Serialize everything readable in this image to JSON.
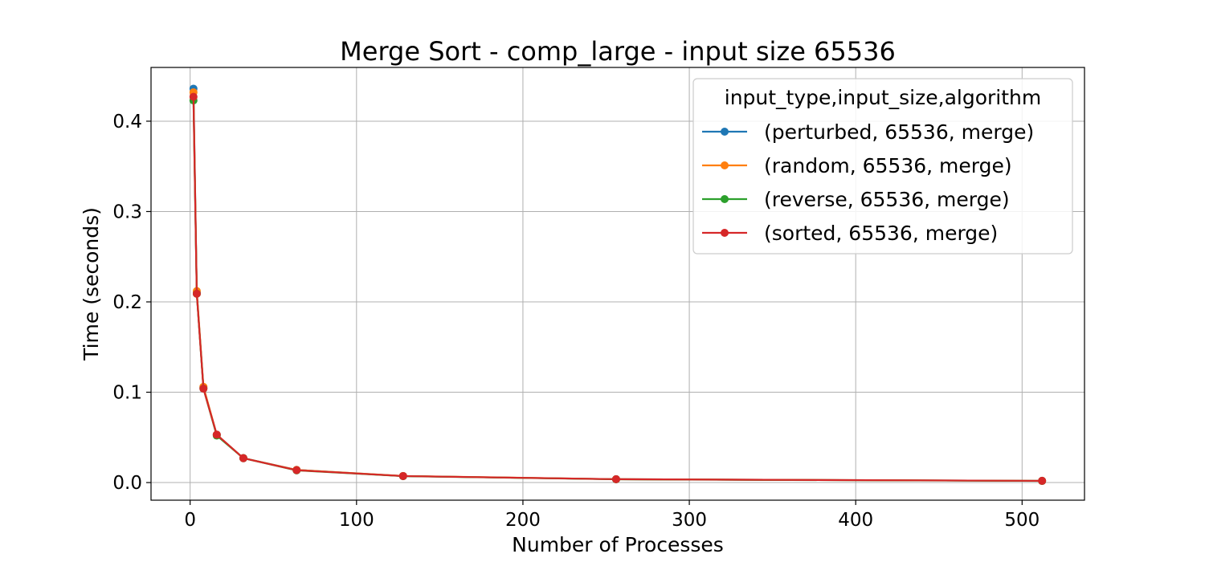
{
  "chart_data": {
    "type": "line",
    "title": "Merge Sort - comp_large - input size 65536",
    "xlabel": "Number of Processes",
    "ylabel": "Time (seconds)",
    "xlim": [
      -23.5,
      537.5
    ],
    "ylim": [
      -0.0195,
      0.4595
    ],
    "xticks": [
      0,
      100,
      200,
      300,
      400,
      500
    ],
    "yticks": [
      0.0,
      0.1,
      0.2,
      0.3,
      0.4
    ],
    "xtick_labels": [
      "0",
      "100",
      "200",
      "300",
      "400",
      "500"
    ],
    "ytick_labels": [
      "0.0",
      "0.1",
      "0.2",
      "0.3",
      "0.4"
    ],
    "grid": true,
    "legend": {
      "title": "input_type,input_size,algorithm",
      "position": "top-right"
    },
    "x": [
      2,
      4,
      8,
      16,
      32,
      64,
      128,
      256,
      512
    ],
    "series": [
      {
        "name": "(perturbed, 65536, merge)",
        "color": "#1f77b4",
        "values": [
          0.436,
          0.21,
          0.105,
          0.053,
          0.027,
          0.014,
          0.0072,
          0.0037,
          0.0019
        ]
      },
      {
        "name": "(random, 65536, merge)",
        "color": "#ff7f0e",
        "values": [
          0.432,
          0.212,
          0.106,
          0.053,
          0.027,
          0.014,
          0.0073,
          0.0037,
          0.0019
        ]
      },
      {
        "name": "(reverse, 65536, merge)",
        "color": "#2ca02c",
        "values": [
          0.423,
          0.209,
          0.104,
          0.052,
          0.027,
          0.0135,
          0.0071,
          0.0036,
          0.0018
        ]
      },
      {
        "name": "(sorted, 65536, merge)",
        "color": "#d62728",
        "values": [
          0.427,
          0.209,
          0.104,
          0.053,
          0.027,
          0.0137,
          0.0072,
          0.0037,
          0.0019
        ]
      }
    ]
  }
}
